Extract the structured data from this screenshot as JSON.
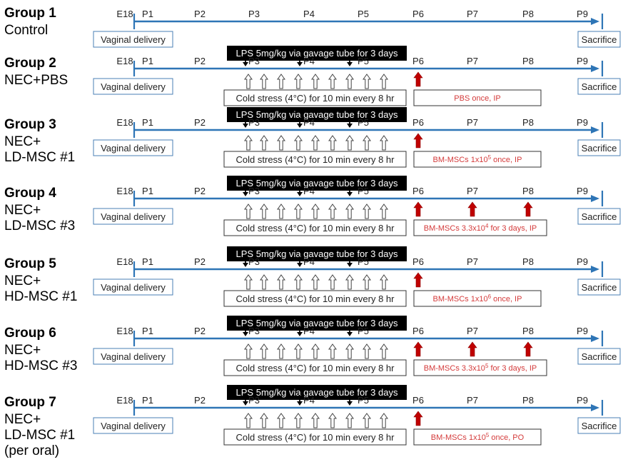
{
  "colors": {
    "timeline": "#2e75b6",
    "treatment": "#c00000",
    "treatment_text": "#d43b3b",
    "lps_bar": "#000000",
    "box_border": "#4a7fb5"
  },
  "ticks": [
    "E18",
    "P1",
    "P2",
    "P3",
    "P4",
    "P5",
    "P6",
    "P7",
    "P8",
    "P9"
  ],
  "start_label": "Vaginal delivery",
  "end_label": "Sacrifice",
  "lps_label": "LPS 5mg/kg via gavage tube for 3 days",
  "cold_label": "Cold stress (4°C) for 10 min every 8 hr",
  "groups": [
    {
      "title": "Group 1",
      "subtitle": [
        "Control"
      ],
      "nec": false,
      "treatment": null,
      "doses": []
    },
    {
      "title": "Group 2",
      "subtitle": [
        "NEC+PBS"
      ],
      "nec": true,
      "treatment": {
        "base": "PBS once, IP",
        "sup": ""
      },
      "doses": [
        "P6"
      ]
    },
    {
      "title": "Group 3",
      "subtitle": [
        "NEC+",
        "LD-MSC #1"
      ],
      "nec": true,
      "treatment": {
        "base": "BM-MSCs 1x10",
        "sup": "5",
        "tail": " once, IP"
      },
      "doses": [
        "P6"
      ]
    },
    {
      "title": "Group 4",
      "subtitle": [
        "NEC+",
        "LD-MSC #3"
      ],
      "nec": true,
      "treatment": {
        "base": "BM-MSCs 3.3x10",
        "sup": "4",
        "tail": " for 3 days, IP"
      },
      "doses": [
        "P6",
        "P7",
        "P8"
      ]
    },
    {
      "title": "Group 5",
      "subtitle": [
        "NEC+",
        "HD-MSC #1"
      ],
      "nec": true,
      "treatment": {
        "base": "BM-MSCs 1x10",
        "sup": "6",
        "tail": " once, IP"
      },
      "doses": [
        "P6"
      ]
    },
    {
      "title": "Group 6",
      "subtitle": [
        "NEC+",
        "HD-MSC #3"
      ],
      "nec": true,
      "treatment": {
        "base": "BM-MSCs 3.3x10",
        "sup": "5",
        "tail": " for 3 days, IP"
      },
      "doses": [
        "P6",
        "P7",
        "P8"
      ]
    },
    {
      "title": "Group 7",
      "subtitle": [
        "NEC+",
        "LD-MSC #1",
        "(per oral)"
      ],
      "nec": true,
      "treatment": {
        "base": "BM-MSCs 1x10",
        "sup": "5",
        "tail": " once, PO"
      },
      "doses": [
        "P6"
      ]
    }
  ]
}
